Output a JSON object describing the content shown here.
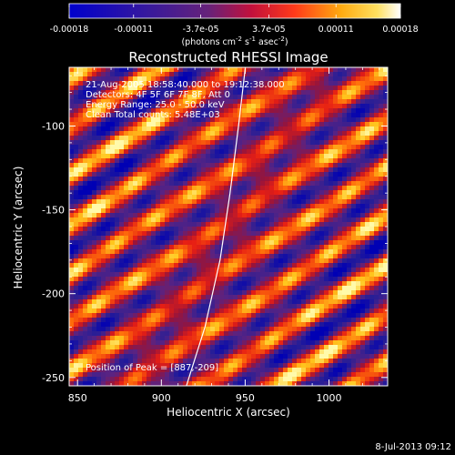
{
  "chart_data": {
    "type": "heatmap",
    "title": "Reconstructed RHESSI Image",
    "xlabel": "Heliocentric X (arcsec)",
    "ylabel": "Heliocentric Y (arcsec)",
    "xlim": [
      845,
      1035
    ],
    "ylim": [
      -255,
      -65
    ],
    "x_ticks": [
      850,
      900,
      950,
      1000
    ],
    "y_ticks": [
      -250,
      -200,
      -150,
      -100
    ],
    "colorbar": {
      "range": [
        -0.00018,
        0.00018
      ],
      "tick_values": [
        -0.00018,
        -0.00011,
        -3.7e-05,
        3.7e-05,
        0.00011,
        0.00018
      ],
      "tick_labels": [
        "-0.00018",
        "-0.00011",
        "-3.7e-05",
        "3.7e-05",
        "0.00011",
        "0.00018"
      ],
      "units_text": "(photons cm",
      "units_exp1": "-2",
      "units_mid": " s",
      "units_exp2": "-1",
      "units_tail": " asec",
      "units_exp3": "-2",
      "units_close": ")"
    },
    "annotations": [
      "21-Aug-2005 18:58:40.000 to 19:12:38.000",
      "Detectors: 4F 5F 6F 7F 8F, Att 0",
      "Energy Range: 25.0 - 50.0 keV",
      "Clean    Total counts: 5.48E+03"
    ],
    "peak_label": "Position of Peak = [887,-209]",
    "peak": [
      887,
      -209
    ],
    "limb_curve": [
      [
        914,
        -258
      ],
      [
        926,
        -220
      ],
      [
        935,
        -180
      ],
      [
        941,
        -140
      ],
      [
        946,
        -100
      ],
      [
        950,
        -66
      ]
    ],
    "footer": "8-Jul-2013 09:12"
  }
}
